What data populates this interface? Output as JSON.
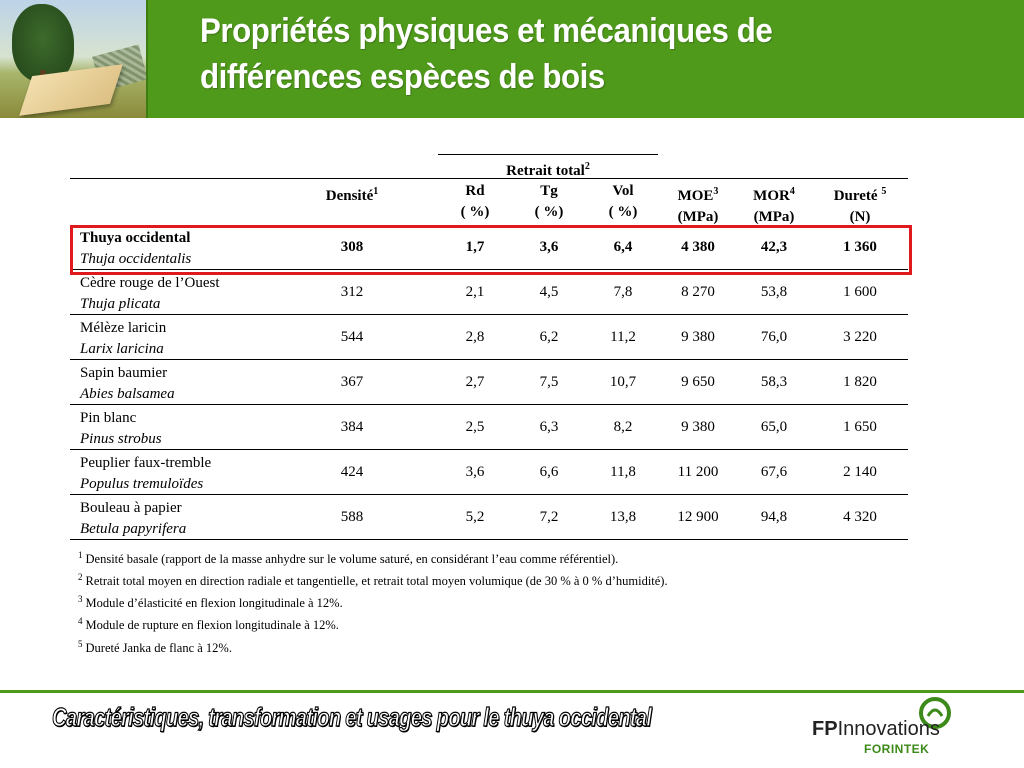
{
  "header": {
    "title_line1": "Propriétés physiques et mécaniques de",
    "title_line2": "différences espèces de bois"
  },
  "table": {
    "group_header": "Retrait total",
    "group_header_sup": "2",
    "columns": [
      {
        "label": "Densité",
        "sup": "1",
        "unit": ""
      },
      {
        "label": "Rd",
        "sup": "",
        "unit": "( %)"
      },
      {
        "label": "Tg",
        "sup": "",
        "unit": "( %)"
      },
      {
        "label": "Vol",
        "sup": "",
        "unit": "( %)"
      },
      {
        "label": "MOE",
        "sup": "3",
        "unit": "(MPa)"
      },
      {
        "label": "MOR",
        "sup": "4",
        "unit": "(MPa)"
      },
      {
        "label": "Dureté ",
        "sup": "5",
        "unit": "(N)"
      }
    ],
    "rows": [
      {
        "common": "Thuya occidental",
        "latin": "Thuja occidentalis",
        "values": [
          "308",
          "1,7",
          "3,6",
          "6,4",
          "4 380",
          "42,3",
          "1 360"
        ]
      },
      {
        "common": "Cèdre rouge de l’Ouest",
        "latin": "Thuja plicata",
        "values": [
          "312",
          "2,1",
          "4,5",
          "7,8",
          "8 270",
          "53,8",
          "1 600"
        ]
      },
      {
        "common": "Mélèze laricin",
        "latin": "Larix laricina",
        "values": [
          "544",
          "2,8",
          "6,2",
          "11,2",
          "9 380",
          "76,0",
          "3 220"
        ]
      },
      {
        "common": "Sapin baumier",
        "latin": "Abies balsamea",
        "values": [
          "367",
          "2,7",
          "7,5",
          "10,7",
          "9 650",
          "58,3",
          "1 820"
        ]
      },
      {
        "common": "Pin blanc",
        "latin": "Pinus strobus",
        "values": [
          "384",
          "2,5",
          "6,3",
          "8,2",
          "9 380",
          "65,0",
          "1 650"
        ]
      },
      {
        "common": "Peuplier faux-tremble",
        "latin": "Populus tremuloïdes",
        "values": [
          "424",
          "3,6",
          "6,6",
          "11,8",
          "11 200",
          "67,6",
          "2 140"
        ]
      },
      {
        "common": "Bouleau à papier",
        "latin": "Betula papyrifera",
        "values": [
          "588",
          "5,2",
          "7,2",
          "13,8",
          "12 900",
          "94,8",
          "4 320"
        ]
      }
    ]
  },
  "footnotes": [
    {
      "num": "1",
      "text": "Densité basale (rapport de la masse anhydre sur le volume saturé, en considérant l’eau comme référentiel)."
    },
    {
      "num": "2",
      "text": "Retrait total moyen en direction radiale et tangentielle, et retrait total moyen volumique (de 30 % à 0 % d’humidité)."
    },
    {
      "num": "3",
      "text": "Module d’élasticité en flexion longitudinale à 12%."
    },
    {
      "num": "4",
      "text": "Module de rupture en flexion longitudinale à 12%."
    },
    {
      "num": "5",
      "text": "Dureté Janka de flanc à 12%."
    }
  ],
  "footer": {
    "caption": "Caractéristiques, transformation et usages pour le thuya occidental",
    "logo_fp": "FP",
    "logo_innovations": "Innovations",
    "logo_forintek": "FORINTEK"
  },
  "colors": {
    "accent_green": "#4f9a1b",
    "highlight_red": "#e0191f"
  }
}
